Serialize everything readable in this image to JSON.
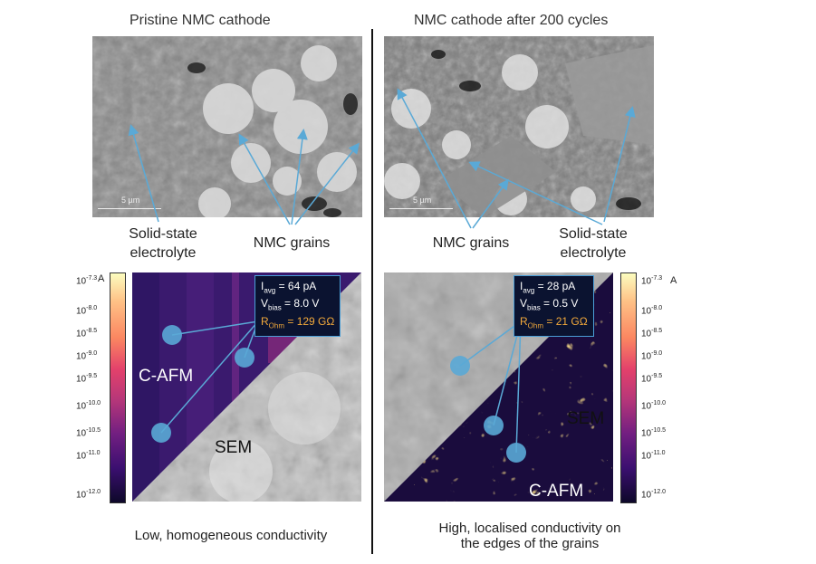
{
  "left": {
    "title": "Pristine NMC cathode",
    "sem_scale": "5 µm",
    "label_sse": "Solid-state electrolyte",
    "label_sse_line1": "Solid-state",
    "label_sse_line2": "electrolyte",
    "label_grains": "NMC grains",
    "info": {
      "i_label": "I",
      "i_sub": "avg",
      "i_val": "= 64 pA",
      "v_label": "V",
      "v_sub": "bias",
      "v_val": "= 8.0 V",
      "r_label": "R",
      "r_sub": "Ohm",
      "r_val": "= 129 GΩ"
    },
    "afm_label": "C-AFM",
    "sem_label": "SEM",
    "caption": "Low, homogeneous conductivity"
  },
  "right": {
    "title": "NMC cathode after 200 cycles",
    "sem_scale": "5 µm",
    "label_sse_line1": "Solid-state",
    "label_sse_line2": "electrolyte",
    "label_grains": "NMC grains",
    "info": {
      "i_label": "I",
      "i_sub": "avg",
      "i_val": "= 28 pA",
      "v_label": "V",
      "v_sub": "bias",
      "v_val": "= 0.5 V",
      "r_label": "R",
      "r_sub": "Ohm",
      "r_val": "= 21 GΩ"
    },
    "afm_label": "C-AFM",
    "sem_label": "SEM",
    "caption_line1": "High, localised conductivity on",
    "caption_line2": "the edges of the grains"
  },
  "colorbar": {
    "unit": "A",
    "ticks": [
      "-7.3",
      "-8.0",
      "-8.5",
      "-9.0",
      "-9.5",
      "-10.0",
      "-10.5",
      "-11.0",
      "-12.0"
    ],
    "base": "10",
    "colormap": [
      "#fcfdbf",
      "#fec287",
      "#fb8761",
      "#e3416b",
      "#b73779",
      "#721f81",
      "#3b0f70",
      "#0d0829"
    ]
  },
  "colors": {
    "annotation": "#5aa9d6",
    "info_border": "#4a9ed6",
    "resistance": "#f2a93b"
  }
}
